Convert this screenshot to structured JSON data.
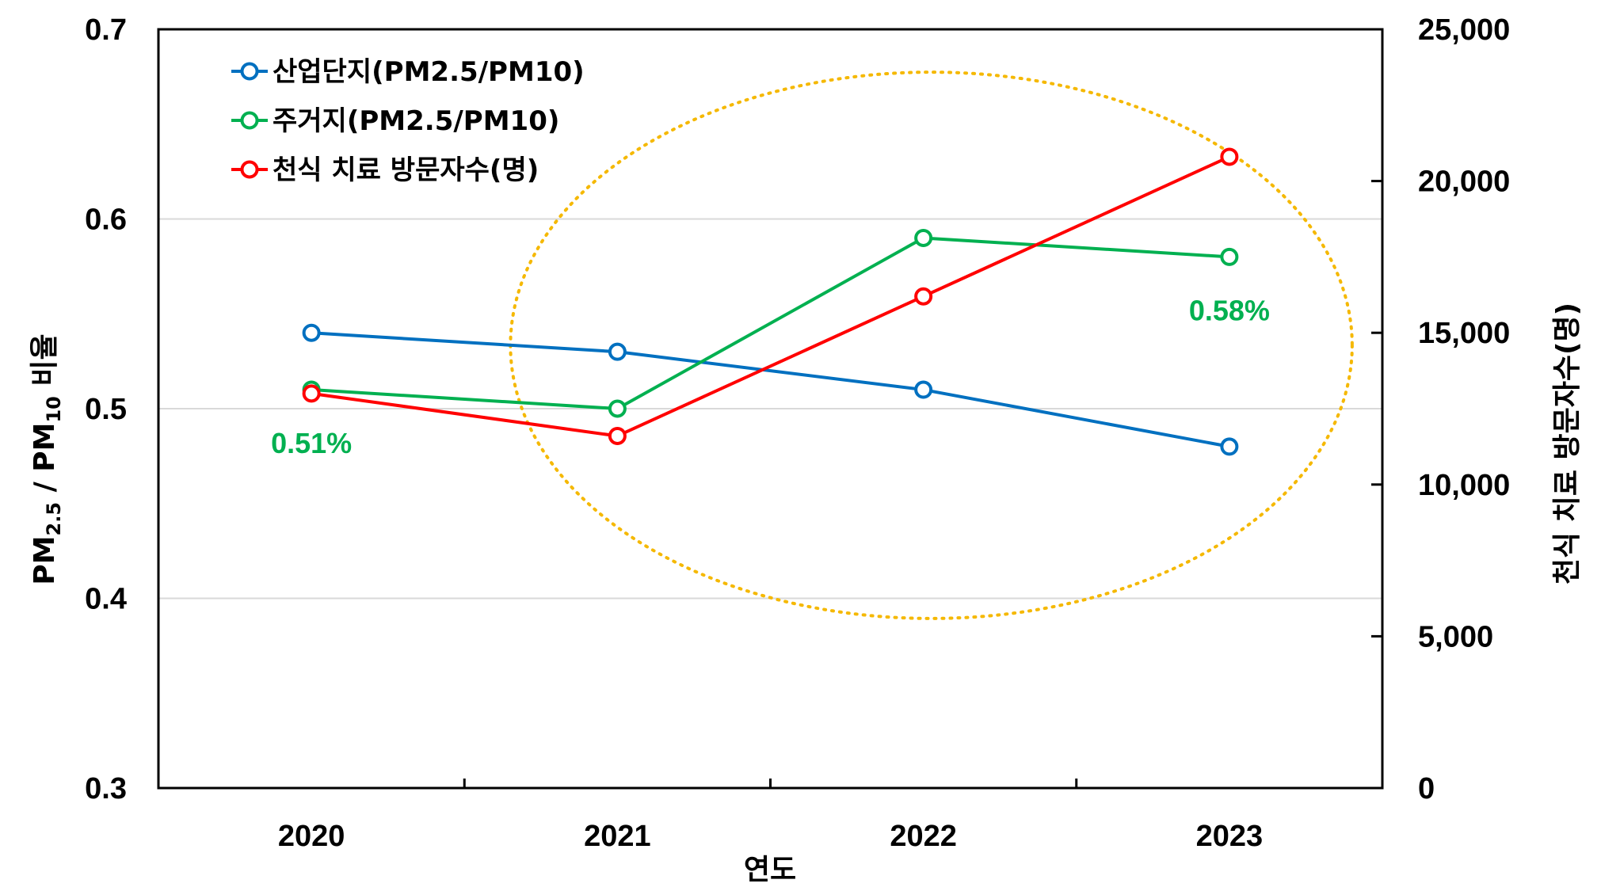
{
  "chart_data": {
    "type": "line",
    "categories": [
      "2020",
      "2021",
      "2022",
      "2023"
    ],
    "xlabel": "연도",
    "ylabel_left": "PM2.5 / PM10 비율",
    "ylabel_left_parts": {
      "pm_a": "PM",
      "sub_a": "2.5",
      "mid": " / PM",
      "sub_b": "10",
      "tail": " 비율"
    },
    "ylabel_right": "천식 치료 방문자수(명)",
    "ylim_left": [
      0.3,
      0.7
    ],
    "yticks_left": [
      "0.3",
      "0.4",
      "0.5",
      "0.6",
      "0.7"
    ],
    "ylim_right": [
      0,
      25000
    ],
    "yticks_right": [
      "0",
      "5,000",
      "10,000",
      "15,000",
      "20,000",
      "25,000"
    ],
    "grid": "horizontal",
    "legend_position": "top-left",
    "series": [
      {
        "name": "산업단지(PM2.5/PM10)",
        "axis": "left",
        "color": "#0070C0",
        "values": [
          0.54,
          0.53,
          0.51,
          0.48
        ]
      },
      {
        "name": "주거지(PM2.5/PM10)",
        "axis": "left",
        "color": "#00B050",
        "values": [
          0.51,
          0.5,
          0.59,
          0.58
        ]
      },
      {
        "name": "천식 치료 방문자수(명)",
        "axis": "right",
        "color": "#FF0000",
        "values": [
          13000,
          11600,
          16200,
          20800
        ]
      }
    ],
    "annotations": [
      {
        "text": "0.51%",
        "color": "#00B050",
        "series": 1,
        "point": 0
      },
      {
        "text": "0.58%",
        "color": "#00B050",
        "series": 1,
        "point": 3
      }
    ],
    "highlight": {
      "shape": "dotted-ellipse",
      "color": "#F5B800",
      "covers": [
        "2021",
        "2022",
        "2023"
      ]
    }
  }
}
